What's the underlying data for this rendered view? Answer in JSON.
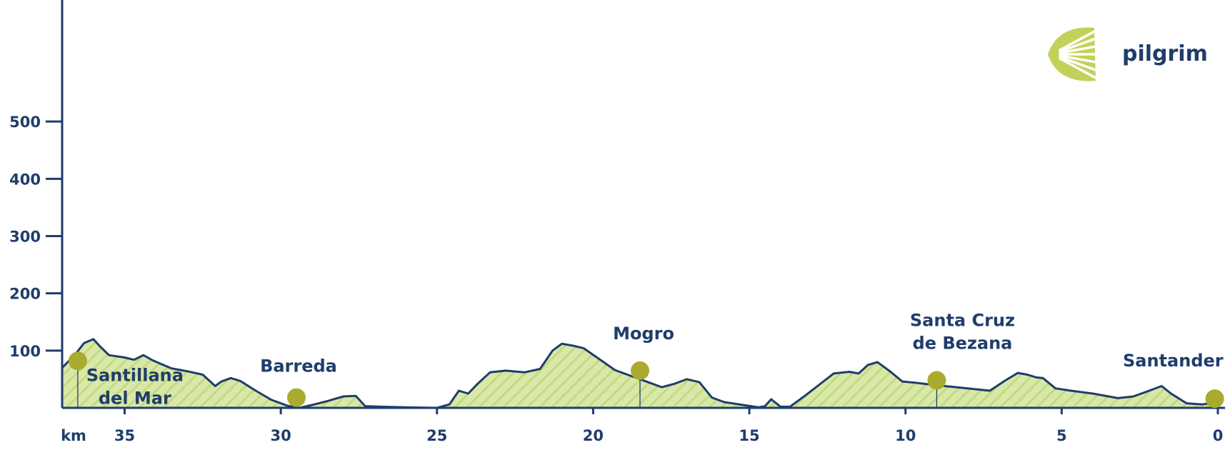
{
  "logo": {
    "text": "pilgrim"
  },
  "colors": {
    "axis": "#1f3d6b",
    "fill": "#d9e8a8",
    "hatch": "#c4da82",
    "marker": "#a9ab2e",
    "logo_shell": "#c3d15a"
  },
  "chart_data": {
    "type": "area",
    "title": "",
    "xlabel": "km",
    "ylabel": "",
    "x_reversed": true,
    "xlim": [
      37,
      0
    ],
    "ylim": [
      0,
      600
    ],
    "x_ticks": [
      35,
      30,
      25,
      20,
      15,
      10,
      5,
      0
    ],
    "x_tick_labels": [
      "35",
      "30",
      "25",
      "20",
      "15",
      "10",
      "5",
      "0"
    ],
    "y_ticks": [
      100,
      200,
      300,
      400,
      500
    ],
    "y_tick_labels": [
      "100",
      "200",
      "300",
      "400",
      "500"
    ],
    "grid": false,
    "series": [
      {
        "x": [
          37,
          36.6,
          36.3,
          36.0,
          35.8,
          35.5,
          35.0,
          34.7,
          34.4,
          34.1,
          33.8,
          33.5,
          33.0,
          32.5,
          32.1,
          31.9,
          31.6,
          31.3,
          30.8,
          30.3,
          29.8,
          29.4,
          29.0,
          28.5,
          28.0,
          27.6,
          27.3,
          26.8,
          26.0,
          25.0,
          24.6,
          24.3,
          24.0,
          23.7,
          23.3,
          22.8,
          22.2,
          21.7,
          21.3,
          21.0,
          20.6,
          20.3,
          19.8,
          19.3,
          18.8,
          18.2,
          17.8,
          17.4,
          17.0,
          16.6,
          16.2,
          15.8,
          15.2,
          14.7,
          14.5,
          14.3,
          14.0,
          13.7,
          13.2,
          12.7,
          12.3,
          11.8,
          11.5,
          11.2,
          10.9,
          10.5,
          10.1,
          9.7,
          9.1,
          8.2,
          7.3,
          6.8,
          6.4,
          6.1,
          5.8,
          5.6,
          5.2,
          4.7,
          4.0,
          3.2,
          2.7,
          2.2,
          1.8,
          1.5,
          1.0,
          0.5,
          0
        ],
        "y": [
          70,
          92,
          113,
          120,
          108,
          92,
          88,
          84,
          92,
          83,
          76,
          69,
          64,
          58,
          38,
          46,
          52,
          47,
          30,
          14,
          4,
          0,
          5,
          12,
          20,
          21,
          3,
          2,
          1,
          0,
          6,
          30,
          25,
          42,
          62,
          65,
          62,
          68,
          100,
          112,
          108,
          104,
          85,
          66,
          56,
          44,
          36,
          42,
          50,
          45,
          18,
          10,
          5,
          1,
          3,
          15,
          2,
          2,
          22,
          43,
          60,
          63,
          60,
          75,
          80,
          64,
          46,
          44,
          40,
          35,
          30,
          48,
          61,
          58,
          53,
          52,
          34,
          30,
          25,
          17,
          20,
          30,
          38,
          25,
          8,
          6,
          10
        ]
      }
    ],
    "markers": [
      {
        "x": 36.5,
        "y": 82,
        "label": "Santillana del Mar",
        "label_lines": [
          "Santillana",
          "del Mar"
        ]
      },
      {
        "x": 29.5,
        "y": 18,
        "label": "Barreda",
        "label_lines": [
          "Barreda"
        ]
      },
      {
        "x": 18.5,
        "y": 65,
        "label": "Mogro",
        "label_lines": [
          "Mogro"
        ]
      },
      {
        "x": 9.0,
        "y": 48,
        "label": "Santa Cruz de Bezana",
        "label_lines": [
          "Santa Cruz",
          "de Bezana"
        ]
      },
      {
        "x": 0.1,
        "y": 16,
        "label": "Santander",
        "label_lines": [
          "Santander"
        ]
      }
    ]
  }
}
